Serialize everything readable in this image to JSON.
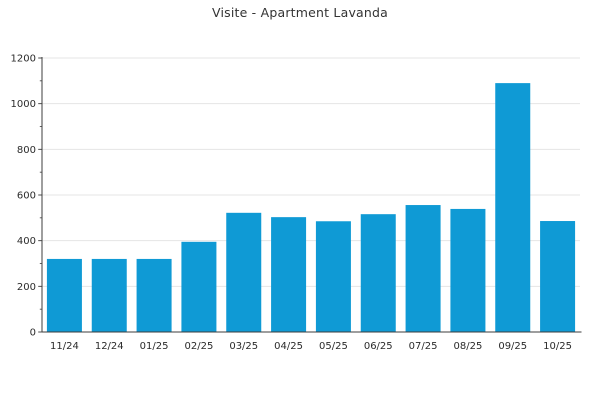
{
  "chart_data": {
    "type": "bar",
    "title": "Visite - Apartment Lavanda",
    "categories": [
      "11/24",
      "12/24",
      "01/25",
      "02/25",
      "03/25",
      "04/25",
      "05/25",
      "06/25",
      "07/25",
      "08/25",
      "09/25",
      "10/25"
    ],
    "values": [
      320,
      320,
      320,
      395,
      522,
      503,
      485,
      516,
      556,
      539,
      1090,
      486
    ],
    "xlabel": "",
    "ylabel": "",
    "ylim": [
      0,
      1200
    ],
    "yticks": [
      0,
      200,
      400,
      600,
      800,
      1000,
      1200
    ],
    "minor_tick_step": 100,
    "grid": "horizontal-major-only",
    "legend": "none",
    "bar_color": "#0f9ad5",
    "grid_color": "#e4e4e4",
    "axis_color": "#3c3c3c",
    "text_color": "#2b2b2b"
  }
}
